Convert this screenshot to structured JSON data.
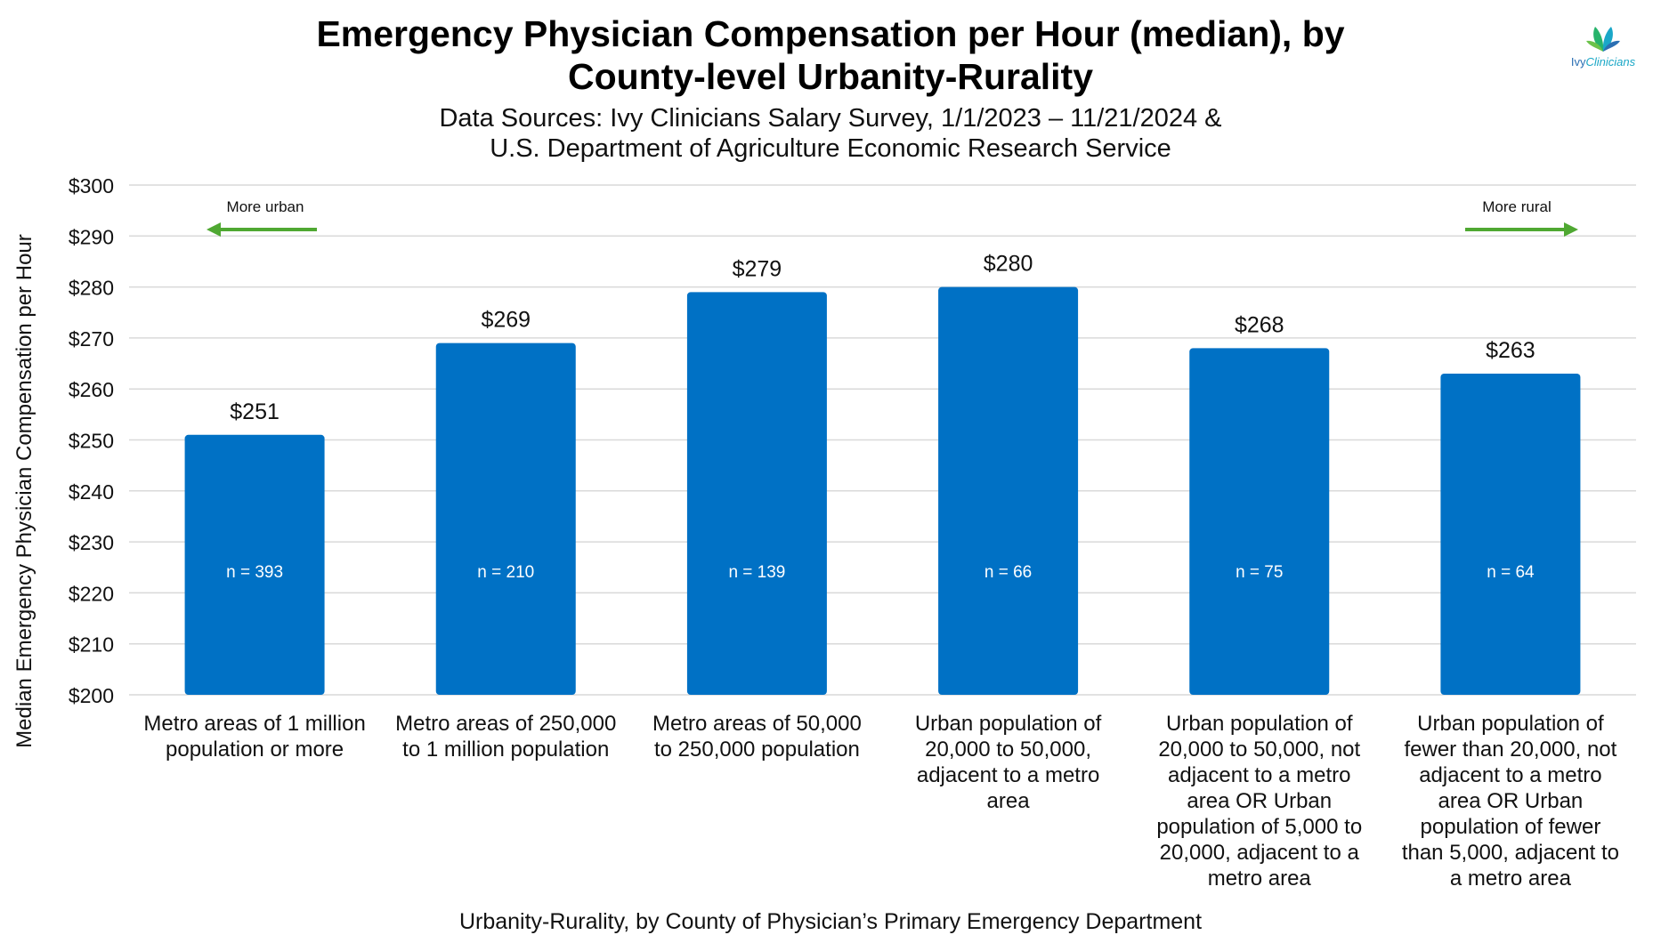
{
  "chart_data": {
    "type": "bar",
    "title": "Emergency Physician Compensation per Hour (median), by County-level Urbanity-Rurality",
    "subtitle_lines": [
      "Data Sources: Ivy Clinicians Salary Survey, 1/1/2023 – 11/21/2024 &",
      "U.S. Department of Agriculture Economic Research Service"
    ],
    "xlabel": "Urbanity-Rurality, by County of Physician’s Primary Emergency Department",
    "ylabel": "Median Emergency Physician Compensation per Hour",
    "ylim": [
      200,
      300
    ],
    "yticks": [
      200,
      210,
      220,
      230,
      240,
      250,
      260,
      270,
      280,
      290,
      300
    ],
    "ytick_labels": [
      "$200",
      "$210",
      "$220",
      "$230",
      "$240",
      "$250",
      "$260",
      "$270",
      "$280",
      "$290",
      "$300"
    ],
    "grid": true,
    "bar_color": "#0071c5",
    "arrow_color": "#4fa832",
    "categories": [
      [
        "Metro areas of 1 million",
        "population or more"
      ],
      [
        "Metro areas of 250,000",
        "to 1 million population"
      ],
      [
        "Metro areas of 50,000",
        "to 250,000 population"
      ],
      [
        "Urban population of",
        "20,000 to 50,000,",
        "adjacent to a metro",
        "area"
      ],
      [
        "Urban population of",
        "20,000 to 50,000, not",
        "adjacent to a metro",
        "area OR Urban",
        "population of 5,000 to",
        "20,000, adjacent to a",
        "metro area"
      ],
      [
        "Urban population of",
        "fewer than 20,000, not",
        "adjacent to a metro",
        "area OR Urban",
        "population of fewer",
        "than 5,000, adjacent to",
        "a metro area"
      ]
    ],
    "values": [
      251,
      269,
      279,
      280,
      268,
      263
    ],
    "value_labels": [
      "$251",
      "$269",
      "$279",
      "$280",
      "$268",
      "$263"
    ],
    "n_labels": [
      "n = 393",
      "n = 210",
      "n = 139",
      "n = 66",
      "n = 75",
      "n = 64"
    ],
    "annotations": {
      "left_arrow": "More urban",
      "right_arrow": "More rural"
    }
  },
  "logo": {
    "name_part1": "Ivy",
    "name_part2": "Clinicians"
  }
}
